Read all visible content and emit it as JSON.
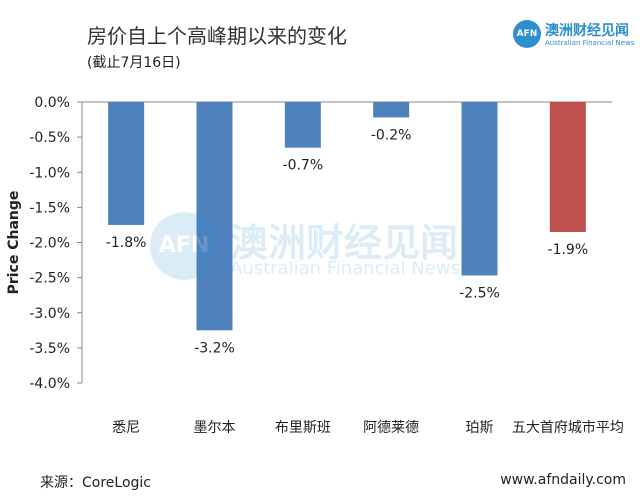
{
  "title": "房价自上个高峰期以来的变化",
  "subtitle": "(截止7月16日)",
  "logo": {
    "cn": "澳洲财经见闻",
    "en": "Australian Financial News",
    "mark": "AFN"
  },
  "watermark": {
    "cn": "澳洲财经见闻",
    "en": "Australian Financial News",
    "mark": "AFN"
  },
  "source": "来源：CoreLogic",
  "website": "www.afndaily.com",
  "colors": {
    "bar": "#4f81bd",
    "highlight": "#c0504d"
  },
  "chart_data": {
    "type": "bar",
    "ylabel": "Price Change",
    "ylim": [
      -4.0,
      0.0
    ],
    "yticks": [
      "0.0%",
      "-0.5%",
      "-1.0%",
      "-1.5%",
      "-2.0%",
      "-2.5%",
      "-3.0%",
      "-3.5%",
      "-4.0%"
    ],
    "categories": [
      "悉尼",
      "墨尔本",
      "布里斯班",
      "阿德莱德",
      "珀斯",
      "五大首府城市平均"
    ],
    "values": [
      -1.75,
      -3.25,
      -0.65,
      -0.22,
      -2.47,
      -1.85
    ],
    "labels": [
      "-1.8%",
      "-3.2%",
      "-0.7%",
      "-0.2%",
      "-2.5%",
      "-1.9%"
    ],
    "highlight_index": 5,
    "grid": false
  }
}
